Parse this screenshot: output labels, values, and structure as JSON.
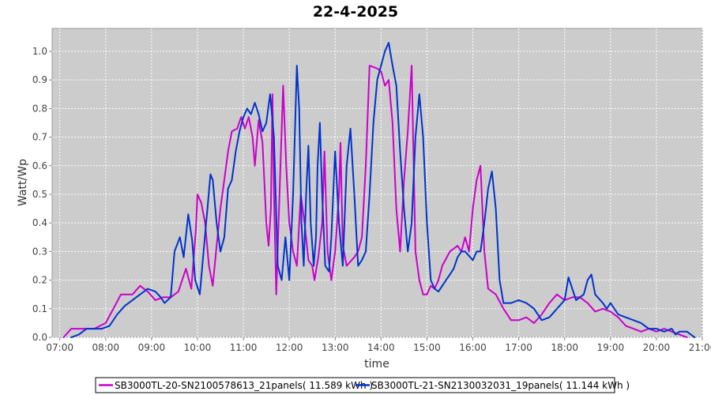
{
  "chart_data": {
    "type": "line",
    "title": "22-4-2025",
    "xlabel": "time",
    "ylabel": "Watt/Wp",
    "xlim": [
      "06:50",
      "21:00"
    ],
    "ylim": [
      0.0,
      1.08
    ],
    "x_ticks": [
      "07:00",
      "08:00",
      "09:00",
      "10:00",
      "11:00",
      "12:00",
      "13:00",
      "14:00",
      "15:00",
      "16:00",
      "17:00",
      "18:00",
      "19:00",
      "20:00",
      "21:00"
    ],
    "y_ticks": [
      "0.0",
      "0.1",
      "0.2",
      "0.3",
      "0.4",
      "0.5",
      "0.6",
      "0.7",
      "0.8",
      "0.9",
      "1.0"
    ],
    "grid": true,
    "legend_position": "bottom",
    "colors": {
      "plot_background": "#cccccc",
      "grid": "#ffffff"
    },
    "series": [
      {
        "name": "SB3000TL-20-SN2100578613_21panels( 11.589 kWh )",
        "color": "#cc00cc",
        "points": [
          [
            "07:05",
            0.0
          ],
          [
            "07:15",
            0.03
          ],
          [
            "07:30",
            0.03
          ],
          [
            "07:45",
            0.03
          ],
          [
            "08:00",
            0.05
          ],
          [
            "08:10",
            0.1
          ],
          [
            "08:20",
            0.15
          ],
          [
            "08:35",
            0.15
          ],
          [
            "08:45",
            0.18
          ],
          [
            "08:55",
            0.16
          ],
          [
            "09:05",
            0.13
          ],
          [
            "09:15",
            0.14
          ],
          [
            "09:25",
            0.14
          ],
          [
            "09:35",
            0.16
          ],
          [
            "09:40",
            0.2
          ],
          [
            "09:45",
            0.24
          ],
          [
            "09:52",
            0.17
          ],
          [
            "09:58",
            0.38
          ],
          [
            "10:00",
            0.5
          ],
          [
            "10:05",
            0.47
          ],
          [
            "10:10",
            0.4
          ],
          [
            "10:15",
            0.25
          ],
          [
            "10:20",
            0.18
          ],
          [
            "10:25",
            0.32
          ],
          [
            "10:30",
            0.45
          ],
          [
            "10:35",
            0.55
          ],
          [
            "10:40",
            0.65
          ],
          [
            "10:45",
            0.72
          ],
          [
            "10:52",
            0.73
          ],
          [
            "10:57",
            0.77
          ],
          [
            "11:02",
            0.73
          ],
          [
            "11:07",
            0.77
          ],
          [
            "11:12",
            0.7
          ],
          [
            "11:15",
            0.6
          ],
          [
            "11:20",
            0.76
          ],
          [
            "11:25",
            0.68
          ],
          [
            "11:30",
            0.4
          ],
          [
            "11:33",
            0.32
          ],
          [
            "11:36",
            0.45
          ],
          [
            "11:38",
            0.85
          ],
          [
            "11:40",
            0.5
          ],
          [
            "11:43",
            0.15
          ],
          [
            "11:46",
            0.4
          ],
          [
            "11:52",
            0.88
          ],
          [
            "11:56",
            0.6
          ],
          [
            "12:00",
            0.4
          ],
          [
            "12:05",
            0.3
          ],
          [
            "12:10",
            0.25
          ],
          [
            "12:15",
            0.5
          ],
          [
            "12:20",
            0.4
          ],
          [
            "12:25",
            0.27
          ],
          [
            "12:30",
            0.25
          ],
          [
            "12:33",
            0.2
          ],
          [
            "12:38",
            0.28
          ],
          [
            "12:43",
            0.4
          ],
          [
            "12:46",
            0.65
          ],
          [
            "12:50",
            0.3
          ],
          [
            "12:55",
            0.2
          ],
          [
            "13:00",
            0.3
          ],
          [
            "13:05",
            0.5
          ],
          [
            "13:07",
            0.68
          ],
          [
            "13:10",
            0.32
          ],
          [
            "13:15",
            0.25
          ],
          [
            "13:25",
            0.28
          ],
          [
            "13:30",
            0.3
          ],
          [
            "13:35",
            0.35
          ],
          [
            "13:40",
            0.6
          ],
          [
            "13:45",
            0.95
          ],
          [
            "13:55",
            0.94
          ],
          [
            "14:00",
            0.93
          ],
          [
            "14:05",
            0.88
          ],
          [
            "14:10",
            0.9
          ],
          [
            "14:15",
            0.75
          ],
          [
            "14:20",
            0.45
          ],
          [
            "14:25",
            0.3
          ],
          [
            "14:30",
            0.55
          ],
          [
            "14:35",
            0.72
          ],
          [
            "14:40",
            0.95
          ],
          [
            "14:45",
            0.3
          ],
          [
            "14:50",
            0.2
          ],
          [
            "14:55",
            0.15
          ],
          [
            "15:00",
            0.15
          ],
          [
            "15:05",
            0.18
          ],
          [
            "15:10",
            0.17
          ],
          [
            "15:15",
            0.2
          ],
          [
            "15:20",
            0.25
          ],
          [
            "15:30",
            0.3
          ],
          [
            "15:40",
            0.32
          ],
          [
            "15:45",
            0.3
          ],
          [
            "15:50",
            0.35
          ],
          [
            "15:55",
            0.3
          ],
          [
            "16:00",
            0.45
          ],
          [
            "16:05",
            0.55
          ],
          [
            "16:10",
            0.6
          ],
          [
            "16:15",
            0.3
          ],
          [
            "16:20",
            0.17
          ],
          [
            "16:30",
            0.15
          ],
          [
            "16:40",
            0.1
          ],
          [
            "16:50",
            0.06
          ],
          [
            "17:00",
            0.06
          ],
          [
            "17:10",
            0.07
          ],
          [
            "17:20",
            0.05
          ],
          [
            "17:30",
            0.08
          ],
          [
            "17:40",
            0.12
          ],
          [
            "17:50",
            0.15
          ],
          [
            "18:00",
            0.13
          ],
          [
            "18:10",
            0.14
          ],
          [
            "18:20",
            0.14
          ],
          [
            "18:30",
            0.12
          ],
          [
            "18:40",
            0.09
          ],
          [
            "18:50",
            0.1
          ],
          [
            "19:00",
            0.09
          ],
          [
            "19:10",
            0.07
          ],
          [
            "19:20",
            0.04
          ],
          [
            "19:30",
            0.03
          ],
          [
            "19:40",
            0.02
          ],
          [
            "19:50",
            0.03
          ],
          [
            "20:00",
            0.02
          ],
          [
            "20:10",
            0.03
          ],
          [
            "20:20",
            0.02
          ],
          [
            "20:30",
            0.01
          ],
          [
            "20:40",
            0.0
          ]
        ]
      },
      {
        "name": "SB3000TL-21-SN2130032031_19panels( 11.144 kWh )",
        "color": "#0033cc",
        "points": [
          [
            "07:15",
            0.0
          ],
          [
            "07:25",
            0.01
          ],
          [
            "07:35",
            0.03
          ],
          [
            "07:45",
            0.03
          ],
          [
            "07:55",
            0.03
          ],
          [
            "08:05",
            0.04
          ],
          [
            "08:15",
            0.08
          ],
          [
            "08:25",
            0.11
          ],
          [
            "08:35",
            0.13
          ],
          [
            "08:45",
            0.15
          ],
          [
            "08:55",
            0.17
          ],
          [
            "09:05",
            0.16
          ],
          [
            "09:12",
            0.14
          ],
          [
            "09:17",
            0.12
          ],
          [
            "09:25",
            0.14
          ],
          [
            "09:30",
            0.3
          ],
          [
            "09:37",
            0.35
          ],
          [
            "09:42",
            0.28
          ],
          [
            "09:48",
            0.43
          ],
          [
            "09:53",
            0.34
          ],
          [
            "09:57",
            0.2
          ],
          [
            "10:03",
            0.15
          ],
          [
            "10:08",
            0.3
          ],
          [
            "10:13",
            0.45
          ],
          [
            "10:17",
            0.57
          ],
          [
            "10:20",
            0.55
          ],
          [
            "10:25",
            0.4
          ],
          [
            "10:30",
            0.3
          ],
          [
            "10:35",
            0.35
          ],
          [
            "10:40",
            0.52
          ],
          [
            "10:45",
            0.55
          ],
          [
            "10:50",
            0.65
          ],
          [
            "10:55",
            0.72
          ],
          [
            "11:00",
            0.77
          ],
          [
            "11:05",
            0.8
          ],
          [
            "11:10",
            0.78
          ],
          [
            "11:15",
            0.82
          ],
          [
            "11:20",
            0.78
          ],
          [
            "11:25",
            0.72
          ],
          [
            "11:30",
            0.75
          ],
          [
            "11:35",
            0.85
          ],
          [
            "11:40",
            0.7
          ],
          [
            "11:45",
            0.25
          ],
          [
            "11:50",
            0.2
          ],
          [
            "11:55",
            0.35
          ],
          [
            "12:00",
            0.2
          ],
          [
            "12:05",
            0.5
          ],
          [
            "12:10",
            0.95
          ],
          [
            "12:13",
            0.8
          ],
          [
            "12:16",
            0.4
          ],
          [
            "12:19",
            0.25
          ],
          [
            "12:22",
            0.5
          ],
          [
            "12:25",
            0.67
          ],
          [
            "12:28",
            0.4
          ],
          [
            "12:32",
            0.25
          ],
          [
            "12:35",
            0.35
          ],
          [
            "12:37",
            0.6
          ],
          [
            "12:40",
            0.75
          ],
          [
            "12:43",
            0.5
          ],
          [
            "12:47",
            0.25
          ],
          [
            "12:52",
            0.23
          ],
          [
            "12:55",
            0.35
          ],
          [
            "13:00",
            0.65
          ],
          [
            "13:05",
            0.4
          ],
          [
            "13:10",
            0.25
          ],
          [
            "13:15",
            0.6
          ],
          [
            "13:20",
            0.73
          ],
          [
            "13:25",
            0.5
          ],
          [
            "13:30",
            0.25
          ],
          [
            "13:35",
            0.27
          ],
          [
            "13:40",
            0.3
          ],
          [
            "13:45",
            0.5
          ],
          [
            "13:50",
            0.75
          ],
          [
            "13:55",
            0.9
          ],
          [
            "14:00",
            0.95
          ],
          [
            "14:05",
            1.0
          ],
          [
            "14:10",
            1.03
          ],
          [
            "14:15",
            0.95
          ],
          [
            "14:20",
            0.88
          ],
          [
            "14:25",
            0.65
          ],
          [
            "14:30",
            0.45
          ],
          [
            "14:35",
            0.3
          ],
          [
            "14:40",
            0.4
          ],
          [
            "14:45",
            0.7
          ],
          [
            "14:50",
            0.85
          ],
          [
            "14:55",
            0.7
          ],
          [
            "15:00",
            0.4
          ],
          [
            "15:05",
            0.2
          ],
          [
            "15:10",
            0.17
          ],
          [
            "15:15",
            0.16
          ],
          [
            "15:20",
            0.18
          ],
          [
            "15:25",
            0.2
          ],
          [
            "15:30",
            0.22
          ],
          [
            "15:35",
            0.24
          ],
          [
            "15:40",
            0.28
          ],
          [
            "15:45",
            0.3
          ],
          [
            "15:50",
            0.3
          ],
          [
            "16:00",
            0.27
          ],
          [
            "16:05",
            0.3
          ],
          [
            "16:10",
            0.3
          ],
          [
            "16:15",
            0.4
          ],
          [
            "16:20",
            0.52
          ],
          [
            "16:25",
            0.58
          ],
          [
            "16:30",
            0.45
          ],
          [
            "16:35",
            0.2
          ],
          [
            "16:40",
            0.12
          ],
          [
            "16:50",
            0.12
          ],
          [
            "17:00",
            0.13
          ],
          [
            "17:10",
            0.12
          ],
          [
            "17:20",
            0.1
          ],
          [
            "17:30",
            0.06
          ],
          [
            "17:40",
            0.07
          ],
          [
            "17:50",
            0.1
          ],
          [
            "18:00",
            0.13
          ],
          [
            "18:05",
            0.21
          ],
          [
            "18:10",
            0.17
          ],
          [
            "18:15",
            0.13
          ],
          [
            "18:25",
            0.15
          ],
          [
            "18:30",
            0.2
          ],
          [
            "18:35",
            0.22
          ],
          [
            "18:40",
            0.15
          ],
          [
            "18:50",
            0.12
          ],
          [
            "18:55",
            0.1
          ],
          [
            "19:00",
            0.12
          ],
          [
            "19:10",
            0.08
          ],
          [
            "19:20",
            0.07
          ],
          [
            "19:30",
            0.06
          ],
          [
            "19:40",
            0.05
          ],
          [
            "19:50",
            0.03
          ],
          [
            "20:00",
            0.03
          ],
          [
            "20:10",
            0.02
          ],
          [
            "20:20",
            0.03
          ],
          [
            "20:25",
            0.01
          ],
          [
            "20:30",
            0.02
          ],
          [
            "20:40",
            0.02
          ],
          [
            "20:50",
            0.0
          ]
        ]
      }
    ]
  }
}
